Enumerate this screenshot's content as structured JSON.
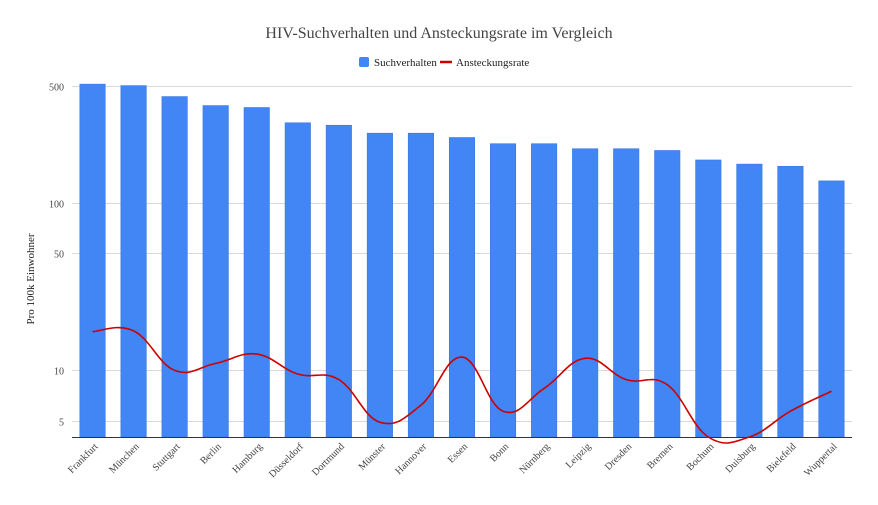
{
  "colors": {
    "bar": "#4285f4",
    "bar_stroke": "#3a78dc",
    "line": "#cc0000",
    "grid": "#d9d9d9",
    "baseline": "#333333"
  },
  "chart_data": {
    "type": "bar",
    "title": "HIV-Suchverhalten und Ansteckungsrate im Vergleich",
    "ylabel": "Pro 100k Einwohner",
    "xlabel": "",
    "y_scale": "log",
    "ylim": [
      4,
      540
    ],
    "y_ticks": [
      5,
      10,
      50,
      100,
      500
    ],
    "y_tick_labels": [
      "5",
      "10",
      "50",
      "100",
      "500"
    ],
    "grid": true,
    "legend_position": "top-center",
    "categories": [
      "Frankfurt",
      "München",
      "Stuttgart",
      "Berlin",
      "Hamburg",
      "Düsseldorf",
      "Dortmund",
      "Münster",
      "Hannover",
      "Essen",
      "Bonn",
      "Nürnberg",
      "Leipzig",
      "Dresden",
      "Bremen",
      "Bochum",
      "Duisburg",
      "Bielefeld",
      "Wuppertal"
    ],
    "series": [
      {
        "name": "Suchverhalten",
        "kind": "bar",
        "values": [
          510,
          500,
          430,
          380,
          370,
          300,
          290,
          260,
          260,
          245,
          225,
          225,
          210,
          210,
          205,
          180,
          170,
          165,
          135
        ]
      },
      {
        "name": "Ansteckungsrate",
        "kind": "line",
        "values": [
          17,
          17.2,
          10,
          11,
          12.5,
          9.5,
          8.8,
          4.9,
          6.2,
          12,
          5.7,
          7.8,
          11.8,
          8.8,
          8.2,
          4,
          4,
          5.7,
          7.5
        ]
      }
    ]
  }
}
